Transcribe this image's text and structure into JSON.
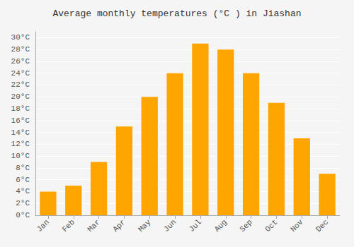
{
  "chart_data": {
    "type": "bar",
    "title": "Average monthly temperatures (°C ) in Jiashan",
    "categories": [
      "Jan",
      "Feb",
      "Mar",
      "Apr",
      "May",
      "Jun",
      "Jul",
      "Aug",
      "Sep",
      "Oct",
      "Nov",
      "Dec"
    ],
    "values": [
      4,
      5,
      9,
      15,
      20,
      24,
      29,
      28,
      24,
      19,
      13,
      7
    ],
    "color": "#FFA500",
    "ylim": [
      0,
      31
    ],
    "yticks": [
      {
        "value": 0,
        "label": "0°C"
      },
      {
        "value": 2,
        "label": "2°C"
      },
      {
        "value": 4,
        "label": "4°C"
      },
      {
        "value": 6,
        "label": "6°C"
      },
      {
        "value": 8,
        "label": "8°C"
      },
      {
        "value": 10,
        "label": "10°C"
      },
      {
        "value": 12,
        "label": "12°C"
      },
      {
        "value": 14,
        "label": "14°C"
      },
      {
        "value": 16,
        "label": "16°C"
      },
      {
        "value": 18,
        "label": "18°C"
      },
      {
        "value": 20,
        "label": "20°C"
      },
      {
        "value": 22,
        "label": "22°C"
      },
      {
        "value": 24,
        "label": "24°C"
      },
      {
        "value": 26,
        "label": "26°C"
      },
      {
        "value": 28,
        "label": "28°C"
      },
      {
        "value": 30,
        "label": "30°C"
      }
    ],
    "grid": true
  }
}
